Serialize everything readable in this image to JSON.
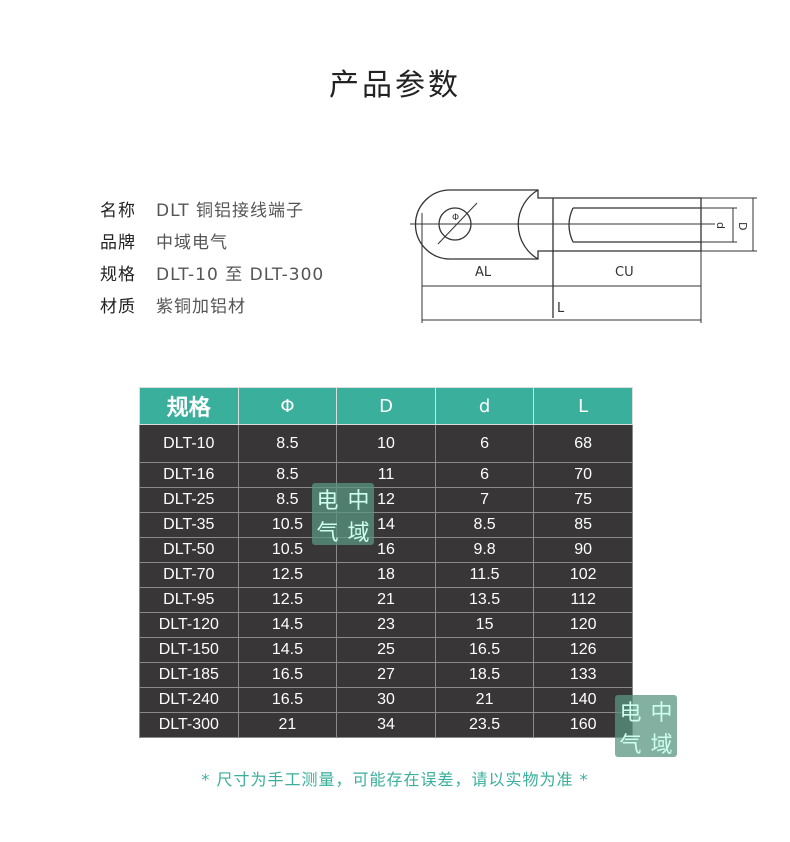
{
  "title": "产品参数",
  "specs": [
    {
      "key": "名称",
      "value": "DLT 铜铝接线端子"
    },
    {
      "key": "品牌",
      "value": "中域电气"
    },
    {
      "key": "规格",
      "value": "DLT-10 至 DLT-300"
    },
    {
      "key": "材质",
      "value": "紫铜加铝材"
    }
  ],
  "diagram": {
    "phi": "Φ",
    "d": "d",
    "D": "D",
    "AL": "AL",
    "CU": "CU",
    "L": "L"
  },
  "table": {
    "headers": [
      "规格",
      "Φ",
      "D",
      "d",
      "L"
    ],
    "rows": [
      [
        "DLT-10",
        "8.5",
        "10",
        "6",
        "68"
      ],
      [
        "DLT-16",
        "8.5",
        "11",
        "6",
        "70"
      ],
      [
        "DLT-25",
        "8.5",
        "12",
        "7",
        "75"
      ],
      [
        "DLT-35",
        "10.5",
        "14",
        "8.5",
        "85"
      ],
      [
        "DLT-50",
        "10.5",
        "16",
        "9.8",
        "90"
      ],
      [
        "DLT-70",
        "12.5",
        "18",
        "11.5",
        "102"
      ],
      [
        "DLT-95",
        "12.5",
        "21",
        "13.5",
        "112"
      ],
      [
        "DLT-120",
        "14.5",
        "23",
        "15",
        "120"
      ],
      [
        "DLT-150",
        "14.5",
        "25",
        "16.5",
        "126"
      ],
      [
        "DLT-185",
        "16.5",
        "27",
        "18.5",
        "133"
      ],
      [
        "DLT-240",
        "16.5",
        "30",
        "21",
        "140"
      ],
      [
        "DLT-300",
        "21",
        "34",
        "23.5",
        "160"
      ]
    ]
  },
  "watermark": [
    "电",
    "中",
    "气",
    "域"
  ],
  "note": "* 尺寸为手工测量，可能存在误差，请以实物为准 *"
}
